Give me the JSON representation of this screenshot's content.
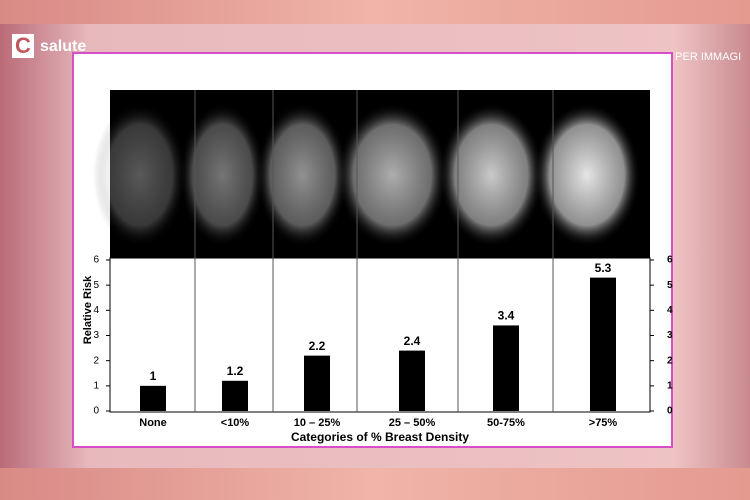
{
  "header": {
    "brand": "salute",
    "caption": "SENOLOGIA, DIAGNOSTICA PER IMMAGI"
  },
  "chart_data": {
    "type": "bar",
    "categories": [
      "None",
      "<10%",
      "10 – 25%",
      "25 – 50%",
      "50-75%",
      ">75%"
    ],
    "values": [
      1,
      1.2,
      2.2,
      2.4,
      3.4,
      5.3
    ],
    "color": "#000000",
    "y_label": "Relative Risk",
    "x_label": "Categories of % Breast Density",
    "ylim": [
      0,
      6
    ],
    "yticks": [
      0,
      1,
      2,
      3,
      4,
      5,
      6
    ],
    "y2lim": [
      0,
      6
    ],
    "y2ticks": [
      0,
      1,
      2,
      3,
      4,
      5,
      6
    ]
  }
}
